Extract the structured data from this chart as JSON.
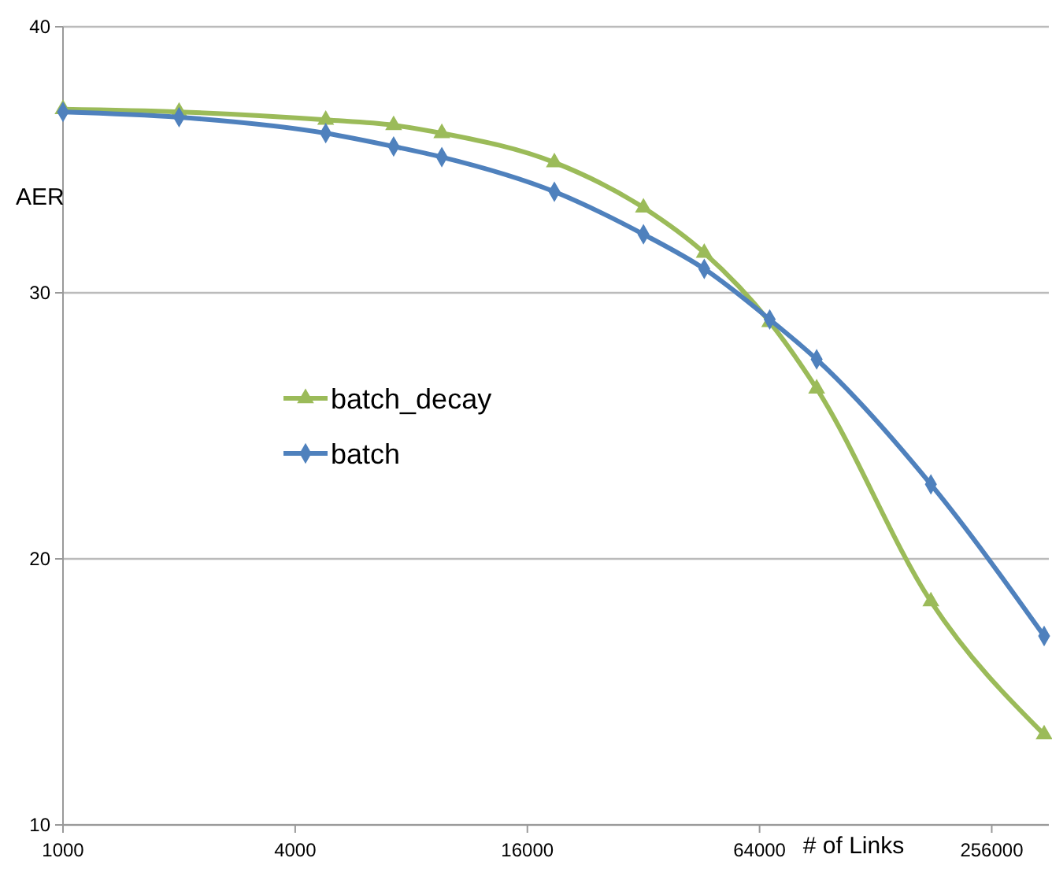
{
  "chart_data": {
    "type": "line",
    "xlabel": "# of Links",
    "ylabel": "AER",
    "x": [
      1000,
      2000,
      4800,
      7200,
      9600,
      18800,
      32000,
      46000,
      68000,
      90000,
      178000,
      350000
    ],
    "series": [
      {
        "name": "batch_decay",
        "color": "#9bbb59",
        "marker": "triangle",
        "values": [
          36.9,
          36.8,
          36.5,
          36.3,
          36.0,
          34.9,
          33.2,
          31.5,
          28.9,
          26.4,
          18.4,
          13.4
        ]
      },
      {
        "name": "batch",
        "color": "#4f81bd",
        "marker": "diamond",
        "values": [
          36.8,
          36.6,
          36.0,
          35.5,
          35.1,
          33.8,
          32.2,
          30.9,
          29.0,
          27.5,
          22.8,
          17.1
        ]
      }
    ],
    "log": "x",
    "xlim": [
      1000,
      360000
    ],
    "xticks": [
      1000,
      4000,
      16000,
      64000,
      256000
    ],
    "ylim": [
      10,
      40
    ],
    "yticks": [
      10,
      20,
      30,
      40
    ],
    "grid": "y",
    "legend": "left"
  }
}
